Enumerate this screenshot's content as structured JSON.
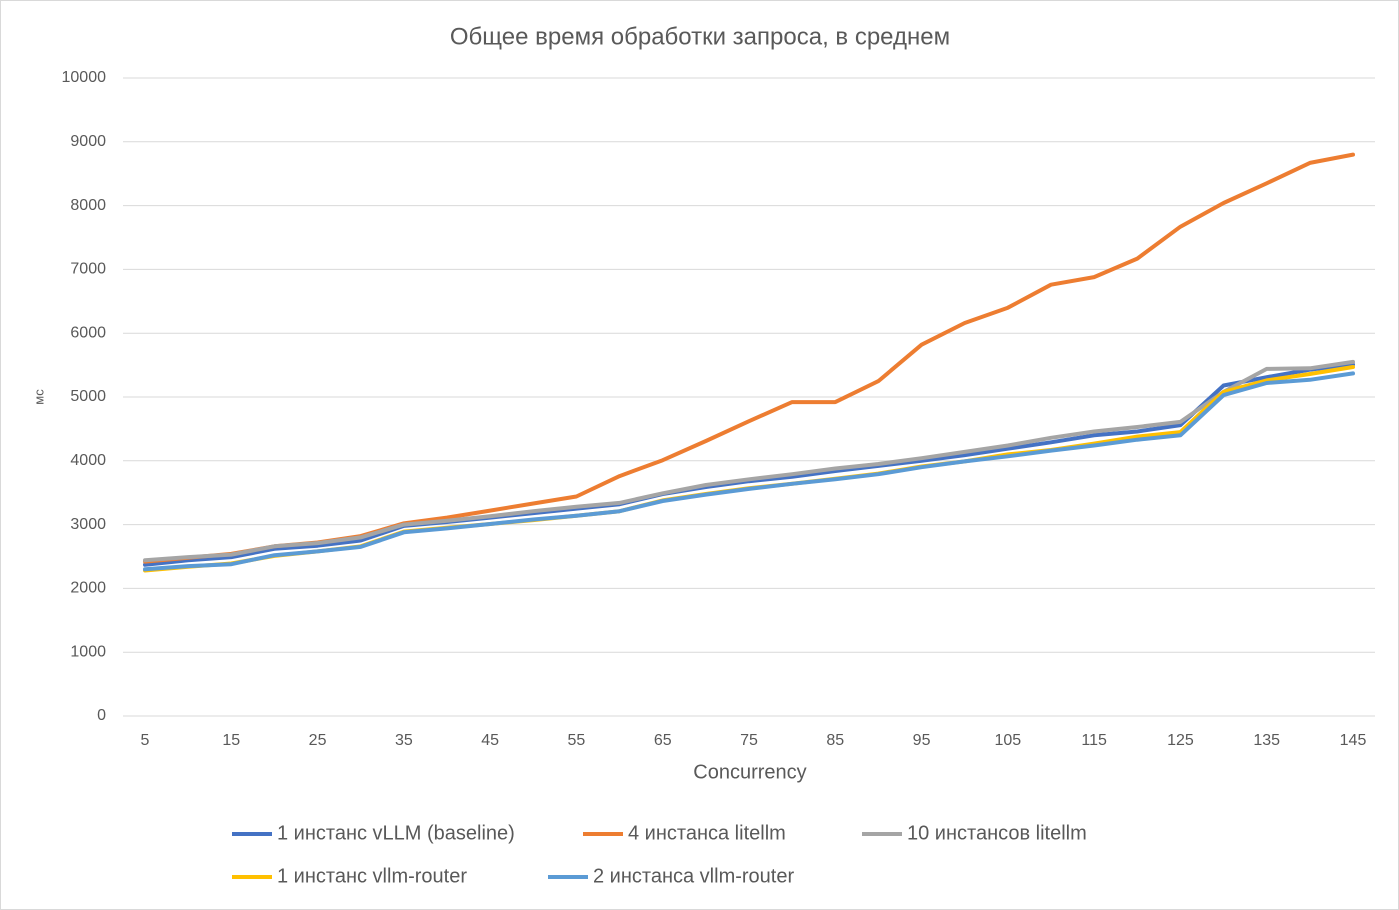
{
  "chart_data": {
    "type": "line",
    "title": "Общее время обработки запроса, в среднем",
    "x_label": "Concurrency",
    "y_label": "мс",
    "categories": [
      5,
      null,
      15,
      null,
      25,
      null,
      35,
      null,
      45,
      null,
      55,
      null,
      65,
      null,
      75,
      null,
      85,
      null,
      95,
      null,
      105,
      null,
      115,
      null,
      125,
      null,
      135,
      null,
      145
    ],
    "ylim": [
      0,
      10000
    ],
    "yticks": [
      0,
      1000,
      2000,
      3000,
      4000,
      5000,
      6000,
      7000,
      8000,
      9000,
      10000
    ],
    "grid": true,
    "legend": "bottom",
    "series": [
      {
        "name": "1 инстанс vLLM (baseline)",
        "color": "#4472c4",
        "values": [
          2370,
          2440,
          2490,
          2620,
          2670,
          2750,
          2980,
          3040,
          3110,
          3180,
          3250,
          3320,
          3480,
          3590,
          3680,
          3750,
          3840,
          3920,
          4000,
          4090,
          4190,
          4290,
          4400,
          4460,
          4560,
          5180,
          5310,
          5430,
          5510
        ]
      },
      {
        "name": "4 инстанса litellm",
        "color": "#ed7d31",
        "values": [
          2420,
          2480,
          2540,
          2660,
          2720,
          2820,
          3020,
          3110,
          3220,
          3330,
          3440,
          3760,
          4010,
          4310,
          4620,
          4920,
          4920,
          5250,
          5820,
          6160,
          6400,
          6760,
          6880,
          7170,
          7670,
          8040,
          8350,
          8670,
          8800
        ]
      },
      {
        "name": "10 инстансов litellm",
        "color": "#a5a5a5",
        "values": [
          2440,
          2490,
          2530,
          2660,
          2710,
          2800,
          3000,
          3060,
          3130,
          3210,
          3280,
          3340,
          3490,
          3620,
          3710,
          3790,
          3880,
          3950,
          4040,
          4140,
          4240,
          4360,
          4460,
          4530,
          4610,
          5080,
          5440,
          5450,
          5550
        ]
      },
      {
        "name": "1 инстанс vllm-router",
        "color": "#ffc000",
        "values": [
          2280,
          2340,
          2390,
          2510,
          2580,
          2660,
          2890,
          2950,
          3010,
          3070,
          3140,
          3210,
          3380,
          3480,
          3570,
          3640,
          3720,
          3800,
          3910,
          3990,
          4100,
          4170,
          4270,
          4380,
          4450,
          5080,
          5260,
          5360,
          5470
        ]
      },
      {
        "name": "2 инстанса vllm-router",
        "color": "#5b9bd5",
        "values": [
          2300,
          2350,
          2380,
          2520,
          2580,
          2650,
          2880,
          2940,
          3010,
          3080,
          3140,
          3210,
          3370,
          3470,
          3560,
          3640,
          3710,
          3790,
          3900,
          3990,
          4070,
          4160,
          4240,
          4330,
          4400,
          5030,
          5220,
          5270,
          5370
        ]
      }
    ]
  }
}
